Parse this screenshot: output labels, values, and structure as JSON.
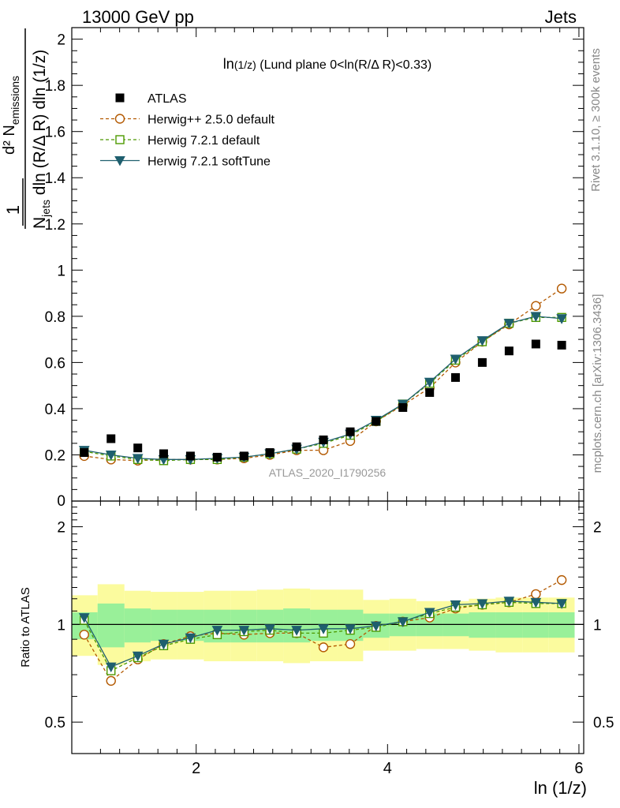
{
  "header": {
    "left": "13000 GeV pp",
    "right": "Jets"
  },
  "side_labels": {
    "rivet": "Rivet 3.1.10, ≥ 300k events",
    "mcplots": "mcplots.cern.ch [arXiv:1306.3436]"
  },
  "y_axis_label": {
    "numerator": "d² N",
    "numerator_sub": "emissions",
    "denominator": "N",
    "denominator_sub": "jets",
    "denominator_rest": " dln (R/Δ R) dln (1/z)",
    "prefactor": "1"
  },
  "ratio_y_label": "Ratio to ATLAS",
  "x_axis_label": "ln (1/z)",
  "chart_data": {
    "type": "line",
    "title_main": "ln",
    "title_paren": "(1/z)",
    "title_rest": " (Lund plane 0<ln(R/Δ R)<0.33)",
    "watermark": "ATLAS_2020_I1790256",
    "x": [
      0.83,
      1.11,
      1.39,
      1.66,
      1.94,
      2.22,
      2.5,
      2.77,
      3.05,
      3.33,
      3.61,
      3.88,
      4.16,
      4.44,
      4.71,
      4.99,
      5.27,
      5.55,
      5.82
    ],
    "xlim": [
      0.7,
      6.05
    ],
    "ylim_main": [
      0,
      2.05
    ],
    "ylim_ratio": [
      0.4,
      2.4
    ],
    "x_ticks": [
      "2",
      "4",
      "6"
    ],
    "y_ticks_main": [
      "0.2",
      "0.4",
      "0.6",
      "0.8",
      "1",
      "1.2",
      "1.4",
      "1.6",
      "1.8",
      "2"
    ],
    "y_zero_label": "0",
    "y_ticks_ratio": [
      "0.5",
      "1",
      "2"
    ],
    "series": [
      {
        "name": "ATLAS",
        "style": "data",
        "color": "#000000",
        "values": [
          0.21,
          0.27,
          0.23,
          0.205,
          0.195,
          0.19,
          0.195,
          0.21,
          0.235,
          0.265,
          0.3,
          0.345,
          0.405,
          0.47,
          0.535,
          0.6,
          0.65,
          0.68,
          0.675
        ]
      },
      {
        "name": "Herwig++ 2.5.0 default",
        "style": "circle",
        "color": "#b35900",
        "values": [
          0.195,
          0.18,
          0.175,
          0.18,
          0.18,
          0.18,
          0.185,
          0.2,
          0.22,
          0.22,
          0.26,
          0.345,
          0.415,
          0.49,
          0.6,
          0.69,
          0.765,
          0.845,
          0.92
        ],
        "ratio": [
          0.93,
          0.67,
          0.78,
          0.87,
          0.92,
          0.94,
          0.93,
          0.94,
          0.94,
          0.85,
          0.87,
          0.99,
          1.02,
          1.05,
          1.12,
          1.15,
          1.17,
          1.24,
          1.37
        ]
      },
      {
        "name": "Herwig 7.2.1 default",
        "style": "square",
        "color": "#4d9900",
        "values": [
          0.215,
          0.195,
          0.18,
          0.175,
          0.18,
          0.18,
          0.19,
          0.205,
          0.225,
          0.25,
          0.285,
          0.345,
          0.42,
          0.51,
          0.61,
          0.69,
          0.77,
          0.795,
          0.795
        ],
        "ratio": [
          1.03,
          0.72,
          0.79,
          0.86,
          0.9,
          0.93,
          0.95,
          0.96,
          0.94,
          0.94,
          0.96,
          0.98,
          1.02,
          1.08,
          1.13,
          1.15,
          1.17,
          1.16,
          1.16
        ]
      },
      {
        "name": "Herwig 7.2.1 softTune",
        "style": "triangle",
        "color": "#1f5f6e",
        "values": [
          0.22,
          0.2,
          0.185,
          0.18,
          0.18,
          0.185,
          0.19,
          0.205,
          0.225,
          0.255,
          0.29,
          0.35,
          0.42,
          0.515,
          0.615,
          0.695,
          0.77,
          0.8,
          0.79
        ],
        "ratio": [
          1.05,
          0.74,
          0.8,
          0.87,
          0.91,
          0.96,
          0.96,
          0.97,
          0.96,
          0.97,
          0.97,
          0.99,
          1.02,
          1.09,
          1.15,
          1.16,
          1.18,
          1.17,
          1.16
        ]
      }
    ],
    "band_colors": {
      "inner": "#99f099",
      "outer": "#fbfb9e"
    },
    "ratio_band_inner": [
      [
        0.9,
        1.09
      ],
      [
        0.85,
        1.16
      ],
      [
        0.88,
        1.12
      ],
      [
        0.89,
        1.11
      ],
      [
        0.89,
        1.11
      ],
      [
        0.88,
        1.11
      ],
      [
        0.88,
        1.11
      ],
      [
        0.88,
        1.11
      ],
      [
        0.88,
        1.12
      ],
      [
        0.89,
        1.11
      ],
      [
        0.89,
        1.11
      ],
      [
        0.91,
        1.08
      ],
      [
        0.92,
        1.08
      ],
      [
        0.92,
        1.08
      ],
      [
        0.92,
        1.08
      ],
      [
        0.91,
        1.09
      ],
      [
        0.91,
        1.09
      ],
      [
        0.91,
        1.09
      ],
      [
        0.91,
        1.09
      ]
    ],
    "ratio_band_outer": [
      [
        0.8,
        1.23
      ],
      [
        0.75,
        1.33
      ],
      [
        0.77,
        1.27
      ],
      [
        0.78,
        1.26
      ],
      [
        0.78,
        1.26
      ],
      [
        0.77,
        1.27
      ],
      [
        0.77,
        1.27
      ],
      [
        0.77,
        1.28
      ],
      [
        0.76,
        1.29
      ],
      [
        0.77,
        1.28
      ],
      [
        0.77,
        1.28
      ],
      [
        0.83,
        1.19
      ],
      [
        0.83,
        1.2
      ],
      [
        0.84,
        1.18
      ],
      [
        0.84,
        1.18
      ],
      [
        0.83,
        1.2
      ],
      [
        0.82,
        1.21
      ],
      [
        0.82,
        1.21
      ],
      [
        0.82,
        1.21
      ]
    ]
  }
}
